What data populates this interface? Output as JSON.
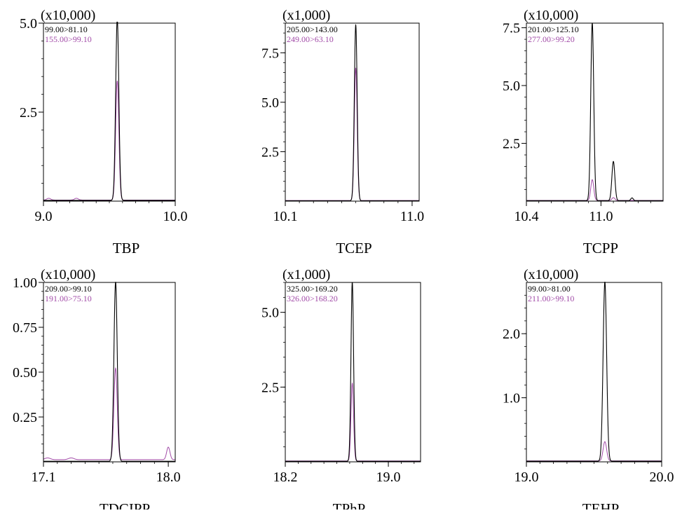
{
  "colors": {
    "frame": "#000000",
    "trace_primary": "#000000",
    "trace_secondary": "#a24ca8"
  },
  "chart_data": [
    {
      "type": "line",
      "name": "TBP",
      "multiplier": "(x10,000)",
      "xlim": [
        9.0,
        10.0
      ],
      "xticks": [
        9.0,
        10.0
      ],
      "xtick_labels": [
        "9.0",
        "10.0"
      ],
      "ylim": [
        0,
        5.0
      ],
      "yticks": [
        2.5,
        5.0
      ],
      "ytick_labels": [
        "2.5",
        "5.0"
      ],
      "series": [
        {
          "name": "99.00>81.10",
          "peaks": [
            {
              "x": 9.56,
              "h": 5.1,
              "w": 0.012
            }
          ],
          "baseline": 0.02
        },
        {
          "name": "155.00>99.10",
          "peaks": [
            {
              "x": 9.56,
              "h": 3.35,
              "w": 0.012
            },
            {
              "x": 9.04,
              "h": 0.05,
              "w": 0.015
            },
            {
              "x": 9.25,
              "h": 0.05,
              "w": 0.015
            }
          ],
          "baseline": 0.03
        }
      ]
    },
    {
      "type": "line",
      "name": "TCEP",
      "multiplier": "(x1,000)",
      "xlim": [
        10.1,
        11.05
      ],
      "xticks": [
        10.1,
        11.0
      ],
      "xtick_labels": [
        "10.1",
        "11.0"
      ],
      "ylim": [
        0,
        9.0
      ],
      "yticks": [
        2.5,
        5.0,
        7.5
      ],
      "ytick_labels": [
        "2.5",
        "5.0",
        "7.5"
      ],
      "series": [
        {
          "name": "205.00>143.00",
          "peaks": [
            {
              "x": 10.6,
              "h": 8.9,
              "w": 0.01
            }
          ],
          "baseline": 0.02
        },
        {
          "name": "249.00>63.10",
          "peaks": [
            {
              "x": 10.6,
              "h": 6.7,
              "w": 0.01
            }
          ],
          "baseline": 0.03
        }
      ]
    },
    {
      "type": "line",
      "name": "TCPP",
      "multiplier": "(x10,000)",
      "xlim": [
        10.4,
        11.5
      ],
      "xticks": [
        10.4,
        11.0
      ],
      "xtick_labels": [
        "10.4",
        "11.0"
      ],
      "ylim": [
        0,
        7.7
      ],
      "yticks": [
        2.5,
        5.0,
        7.5
      ],
      "ytick_labels": [
        "2.5",
        "5.0",
        "7.5"
      ],
      "series": [
        {
          "name": "201.00>125.10",
          "peaks": [
            {
              "x": 10.93,
              "h": 7.7,
              "w": 0.012
            },
            {
              "x": 11.1,
              "h": 1.7,
              "w": 0.012
            },
            {
              "x": 11.25,
              "h": 0.12,
              "w": 0.01
            }
          ],
          "baseline": 0.02
        },
        {
          "name": "277.00>99.20",
          "peaks": [
            {
              "x": 10.93,
              "h": 0.9,
              "w": 0.012
            },
            {
              "x": 11.1,
              "h": 0.12,
              "w": 0.012
            }
          ],
          "baseline": 0.03
        }
      ]
    },
    {
      "type": "line",
      "name": "TDCIPP",
      "multiplier": "(x10,000)",
      "xlim": [
        17.1,
        18.05
      ],
      "xticks": [
        17.1,
        18.0
      ],
      "xtick_labels": [
        "17.1",
        "18.0"
      ],
      "ylim": [
        0,
        1.0
      ],
      "yticks": [
        0.25,
        0.5,
        0.75,
        1.0
      ],
      "ytick_labels": [
        "0.25",
        "0.50",
        "0.75",
        "1.00"
      ],
      "series": [
        {
          "name": "209.00>99.10",
          "peaks": [
            {
              "x": 17.62,
              "h": 1.0,
              "w": 0.012
            }
          ],
          "baseline": 0.003
        },
        {
          "name": "191.00>75.10",
          "peaks": [
            {
              "x": 17.62,
              "h": 0.51,
              "w": 0.012
            },
            {
              "x": 18.0,
              "h": 0.07,
              "w": 0.012
            },
            {
              "x": 17.13,
              "h": 0.01,
              "w": 0.02
            },
            {
              "x": 17.3,
              "h": 0.01,
              "w": 0.02
            }
          ],
          "baseline": 0.012
        }
      ]
    },
    {
      "type": "line",
      "name": "TPhP",
      "multiplier": "(x1,000)",
      "xlim": [
        18.2,
        19.25
      ],
      "xticks": [
        18.2,
        19.0
      ],
      "xtick_labels": [
        "18.2",
        "19.0"
      ],
      "ylim": [
        0,
        6.0
      ],
      "yticks": [
        2.5,
        5.0
      ],
      "ytick_labels": [
        "2.5",
        "5.0"
      ],
      "series": [
        {
          "name": "325.00>169.20",
          "peaks": [
            {
              "x": 18.72,
              "h": 6.0,
              "w": 0.01
            }
          ],
          "baseline": 0.02
        },
        {
          "name": "326.00>168.20",
          "peaks": [
            {
              "x": 18.72,
              "h": 2.6,
              "w": 0.01
            }
          ],
          "baseline": 0.03
        }
      ]
    },
    {
      "type": "line",
      "name": "TEHP",
      "multiplier": "(x10,000)",
      "xlim": [
        19.0,
        20.0
      ],
      "xticks": [
        19.0,
        20.0
      ],
      "xtick_labels": [
        "19.0",
        "20.0"
      ],
      "ylim": [
        0,
        2.8
      ],
      "yticks": [
        1.0,
        2.0
      ],
      "ytick_labels": [
        "1.0",
        "2.0"
      ],
      "series": [
        {
          "name": "99.00>81.00",
          "peaks": [
            {
              "x": 19.58,
              "h": 2.8,
              "w": 0.013
            }
          ],
          "baseline": 0.01
        },
        {
          "name": "211.00>99.10",
          "peaks": [
            {
              "x": 19.58,
              "h": 0.3,
              "w": 0.013
            }
          ],
          "baseline": 0.015
        }
      ]
    }
  ]
}
